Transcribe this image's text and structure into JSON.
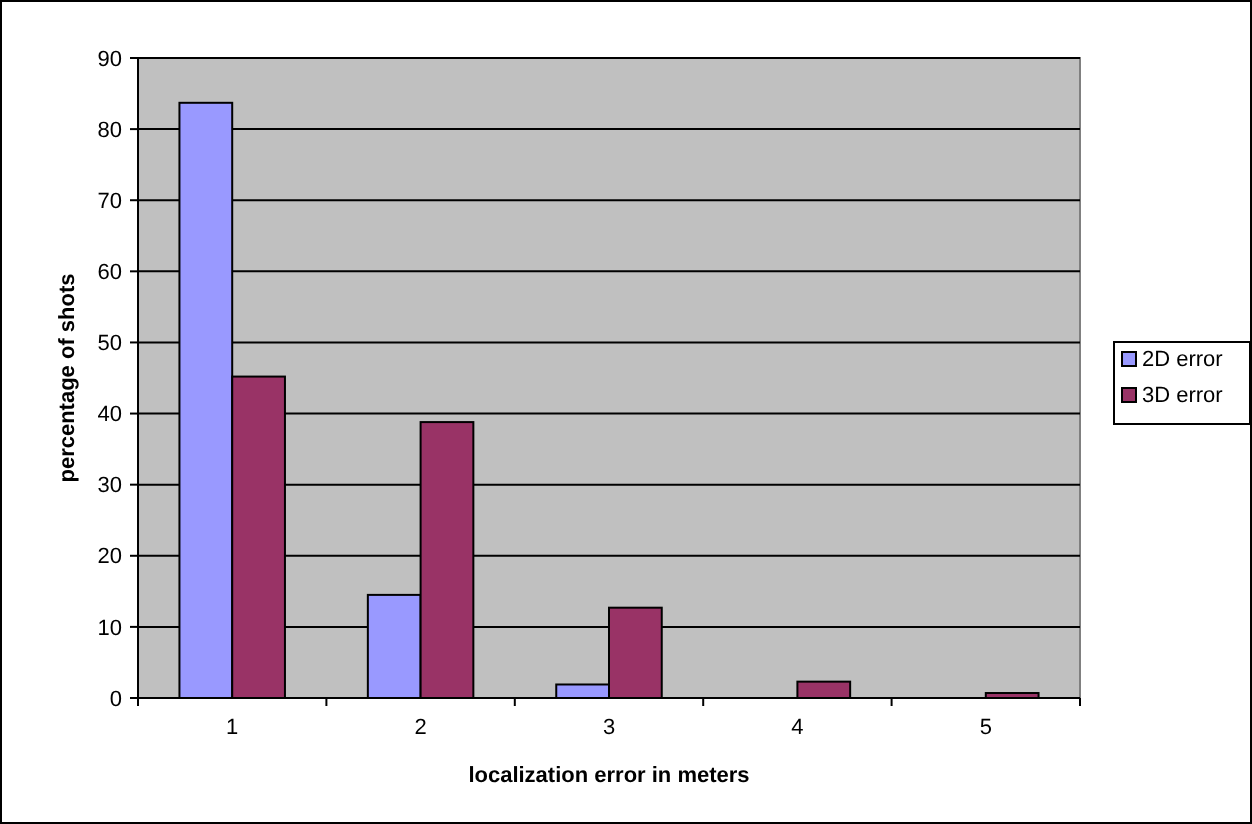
{
  "chart_data": {
    "type": "bar",
    "xlabel": "localization error in meters",
    "ylabel": "percentage of shots",
    "categories": [
      "1",
      "2",
      "3",
      "4",
      "5"
    ],
    "series": [
      {
        "name": "2D error",
        "color": "#9999ff",
        "values": [
          83.7,
          14.5,
          1.9,
          0,
          0
        ]
      },
      {
        "name": "3D error",
        "color": "#993366",
        "values": [
          45.2,
          38.8,
          12.7,
          2.3,
          0.7
        ]
      }
    ],
    "ylim": [
      0,
      90
    ],
    "yticks": [
      0,
      10,
      20,
      30,
      40,
      50,
      60,
      70,
      80,
      90
    ],
    "grid": "y",
    "legend": "right"
  }
}
